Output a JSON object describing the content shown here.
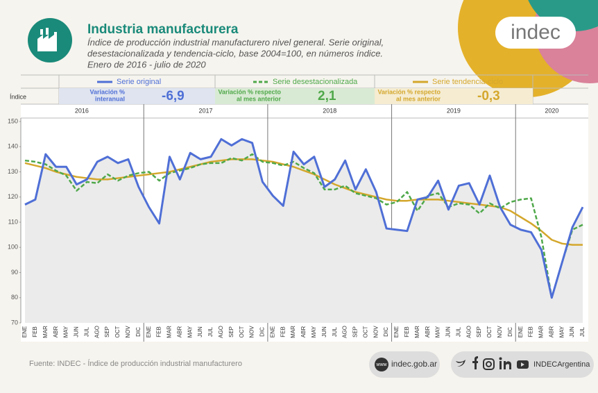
{
  "header": {
    "title": "Industria manufacturera",
    "subtitle": [
      "Índice de producción industrial manufacturero nivel general. Serie original,",
      "desestacionalizada y tendencia-ciclo, base 2004=100, en números índice.",
      "Enero de 2016 - julio de 2020"
    ],
    "logo": "indec"
  },
  "indicators": [
    {
      "label": [
        "Variación %",
        "interanual"
      ],
      "value": "-6,9"
    },
    {
      "label": [
        "Variación % respecto",
        "al mes anterior"
      ],
      "value": "2,1"
    },
    {
      "label": [
        "Variación % respecto",
        "al mes anterior"
      ],
      "value": "-0,3"
    }
  ],
  "footer": {
    "source": "Fuente: INDEC - Índice de producción industrial manufacturero",
    "www": "www",
    "website": "indec.gob.ar",
    "social": "INDECArgentina"
  },
  "chart_data": {
    "type": "line",
    "y_label": "Índice",
    "year_labels": [
      "2016",
      "2017",
      "2018",
      "2019",
      "2020"
    ],
    "categories": [
      "ENE",
      "FEB",
      "MAR",
      "ABR",
      "MAY",
      "JUN",
      "JUL",
      "AGO",
      "SEP",
      "OCT",
      "NOV",
      "DIC",
      "ENE",
      "FEB",
      "MAR",
      "ABR",
      "MAY",
      "JUN",
      "JUL",
      "AGO",
      "SEP",
      "OCT",
      "NOV",
      "DIC",
      "ENE",
      "FEB",
      "MAR",
      "ABR",
      "MAY",
      "JUN",
      "JUL",
      "AGO",
      "SEP",
      "OCT",
      "NOV",
      "DIC",
      "ENE",
      "FEB",
      "MAR",
      "ABR",
      "MAY",
      "JUN",
      "JUL",
      "AGO",
      "SEP",
      "OCT",
      "NOV",
      "DIC",
      "ENE",
      "FEB",
      "MAR",
      "ABR",
      "MAY",
      "JUN",
      "JUL"
    ],
    "series": [
      {
        "name": "Serie original",
        "color": "#4f6fd6",
        "dash": false,
        "values": [
          117,
          119,
          137,
          132,
          132,
          125,
          127,
          134,
          136,
          133.5,
          135,
          124,
          116,
          109.5,
          136,
          127,
          137.5,
          135,
          136,
          143,
          140.5,
          143,
          141.5,
          126,
          120.5,
          116.5,
          138,
          133,
          136,
          124,
          127,
          134.5,
          123,
          131,
          122,
          107.5,
          107,
          106.5,
          119,
          120,
          126.5,
          115,
          124.5,
          125.5,
          117,
          128.5,
          116,
          109,
          107,
          106,
          99,
          80,
          94,
          108,
          116
        ]
      },
      {
        "name": "Serie desestacionalizada",
        "color": "#4fa84a",
        "dash": true,
        "values": [
          134.5,
          134,
          133,
          130.5,
          128.5,
          122.5,
          126,
          125.5,
          129,
          126.5,
          128.5,
          129.5,
          130,
          126.5,
          129.5,
          130.5,
          131.5,
          133,
          133.5,
          133.5,
          135.5,
          134.5,
          137,
          134,
          133.5,
          132.5,
          134,
          131.5,
          129.5,
          123,
          123,
          124.5,
          121.5,
          120.5,
          119.5,
          117,
          118,
          122,
          114.5,
          120.5,
          121.5,
          116,
          117.5,
          117,
          113.5,
          117.5,
          115.5,
          118,
          119,
          119.5,
          104,
          80,
          94,
          107,
          109
        ]
      },
      {
        "name": "Serie tendencia-ciclo",
        "color": "#d4a72c",
        "dash": false,
        "values": [
          133.5,
          132.5,
          131.5,
          130,
          129,
          128,
          127.5,
          127,
          127,
          127.5,
          128,
          128.5,
          129,
          129.5,
          130,
          131,
          132,
          133,
          134,
          134.5,
          135,
          135,
          135,
          134.5,
          134,
          133,
          132,
          130.5,
          129,
          127,
          125,
          123.5,
          122,
          121,
          120,
          119,
          118.5,
          118.5,
          119,
          119,
          119,
          118.5,
          118,
          117.5,
          117,
          116.5,
          116,
          114.5,
          112,
          109.5,
          106.5,
          103,
          101.5,
          101,
          101
        ]
      }
    ],
    "ylim": [
      70,
      150
    ],
    "yticks": [
      70,
      80,
      90,
      100,
      110,
      120,
      130,
      140,
      150
    ],
    "grid": false
  }
}
